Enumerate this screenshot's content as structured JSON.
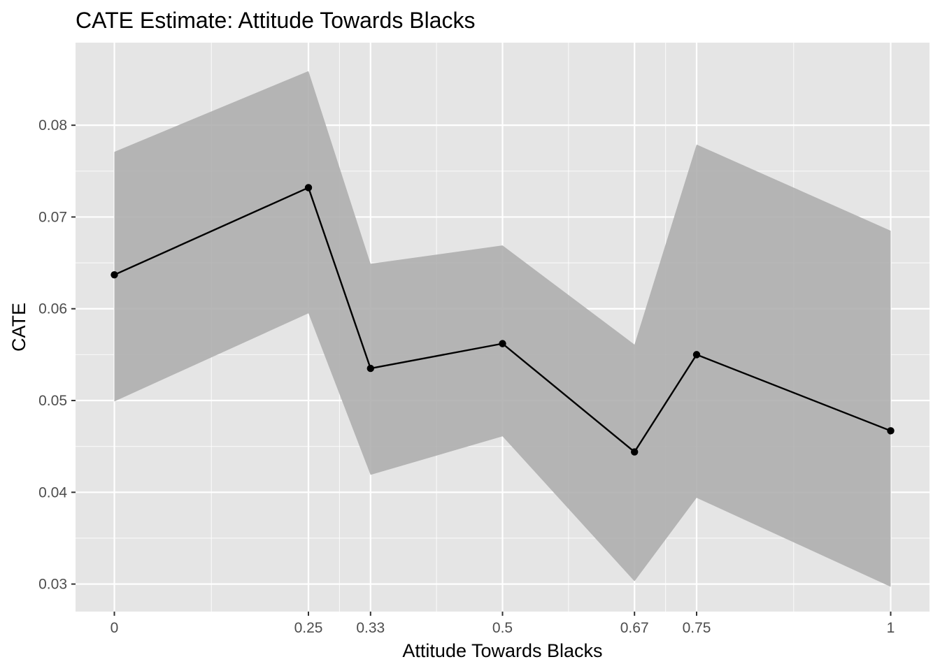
{
  "chart_data": {
    "type": "line",
    "title": "CATE Estimate: Attitude Towards Blacks",
    "xlabel": "Attitude Towards Blacks",
    "ylabel": "CATE",
    "x": [
      0,
      0.25,
      0.33,
      0.5,
      0.67,
      0.75,
      1
    ],
    "x_tick_labels": [
      "0",
      "0.25",
      "0.33",
      "0.5",
      "0.67",
      "0.75",
      "1"
    ],
    "y_ticks": [
      0.03,
      0.04,
      0.05,
      0.06,
      0.07,
      0.08
    ],
    "y_tick_labels": [
      "0.03",
      "0.04",
      "0.05",
      "0.06",
      "0.07",
      "0.08"
    ],
    "xlim": [
      -0.05,
      1.05
    ],
    "ylim": [
      0.027,
      0.089
    ],
    "series": [
      {
        "values": [
          0.0637,
          0.0732,
          0.0535,
          0.0562,
          0.0444,
          0.055,
          0.0467
        ],
        "lower": [
          0.0499,
          0.0595,
          0.0419,
          0.0461,
          0.0303,
          0.0394,
          0.0297
        ],
        "upper": [
          0.0771,
          0.0859,
          0.0649,
          0.0669,
          0.0561,
          0.0779,
          0.0685
        ]
      }
    ],
    "grid": true,
    "colors": {
      "panel": "#e5e5e5",
      "grid_major": "#ffffff",
      "ribbon": "#adadad",
      "line": "#000000",
      "tick_label": "#4d4d4d"
    }
  }
}
